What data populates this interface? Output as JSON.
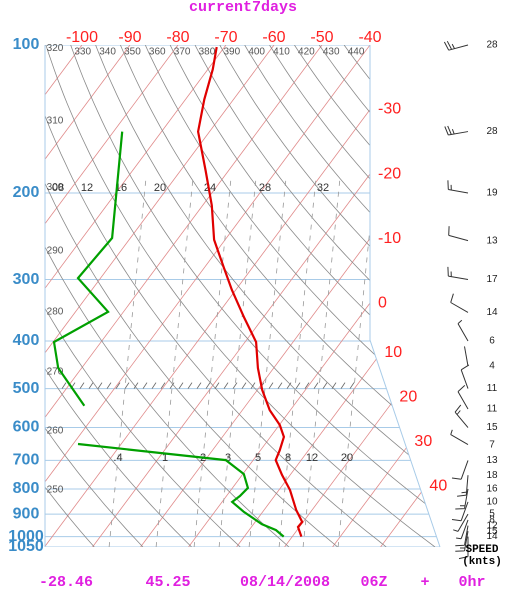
{
  "chart_data": {
    "type": "skewt",
    "title": "current7days",
    "ylim": [
      100,
      1050
    ],
    "y_log": true,
    "yticks": [
      100,
      200,
      300,
      400,
      500,
      600,
      700,
      800,
      900,
      1000,
      1050
    ],
    "xlim": [
      -107.7,
      -40
    ],
    "temp_ticks": [
      -100,
      -90,
      -80,
      -70,
      -60,
      -50,
      -40,
      -30,
      -20,
      -10,
      0,
      10,
      20,
      30,
      40
    ],
    "theta_ticks": [
      250,
      260,
      270,
      280,
      290,
      300,
      310,
      320,
      330,
      340,
      350,
      360,
      370,
      380,
      390,
      400,
      410,
      420,
      430,
      440
    ],
    "mixing_labels_upper": [
      "08",
      "12",
      "16",
      "20",
      "24",
      "28",
      "32"
    ],
    "mixing_labels_lower": [
      ".4",
      "1",
      "2",
      "3",
      "5",
      "8",
      "12",
      "20"
    ],
    "series": [
      {
        "color": "#e00000",
        "pressure": [
          1000,
          956,
          934,
          883,
          804,
          749,
          699,
          667,
          627,
          593,
          553,
          503,
          454,
          402,
          359,
          315,
          284,
          249,
          212,
          180,
          150,
          129,
          112,
          101
        ],
        "values": [
          21.9,
          19.7,
          19.8,
          16.7,
          12.3,
          8.3,
          4.7,
          4.0,
          2.8,
          0.1,
          -4.3,
          -9.0,
          -13.3,
          -17.7,
          -23.9,
          -30.8,
          -35.9,
          -42.3,
          -48.1,
          -54.8,
          -62.4,
          -66.1,
          -69.0,
          -71.6
        ]
      },
      {
        "color": "#00a000",
        "pressure": [
          1000,
          970,
          943,
          891,
          850,
          827,
          796,
          746,
          699,
          648,
          null,
          542,
          454,
          402,
          349,
          298,
          247,
          150
        ],
        "values": [
          18.2,
          15.6,
          11.7,
          6.1,
          2.1,
          2.8,
          3.2,
          0.2,
          -5.7,
          -39.0,
          null,
          -43.6,
          -54.9,
          -59.8,
          -53.2,
          -64.7,
          -63.8,
          -78.2
        ]
      }
    ],
    "wind": {
      "pressure": [
        100,
        150,
        200,
        250,
        300,
        350,
        400,
        450,
        500,
        550,
        600,
        650,
        700,
        750,
        800,
        850,
        900,
        925,
        950,
        975,
        1000
      ],
      "speed": [
        28,
        28,
        19,
        13,
        17,
        14,
        6,
        4,
        11,
        11,
        15,
        7,
        13,
        18,
        16,
        10,
        5,
        8,
        12,
        15,
        14
      ],
      "direction": [
        255,
        260,
        280,
        285,
        280,
        300,
        330,
        350,
        340,
        330,
        320,
        300,
        200,
        185,
        190,
        200,
        210,
        200,
        190,
        190,
        180
      ],
      "header": "SPEED",
      "units": "(knts)"
    },
    "footer": {
      "lat": -28.46,
      "lon": 45.25,
      "date": "08/14/2008",
      "time": "06Z",
      "sign": "+",
      "offset": "0hr"
    }
  }
}
